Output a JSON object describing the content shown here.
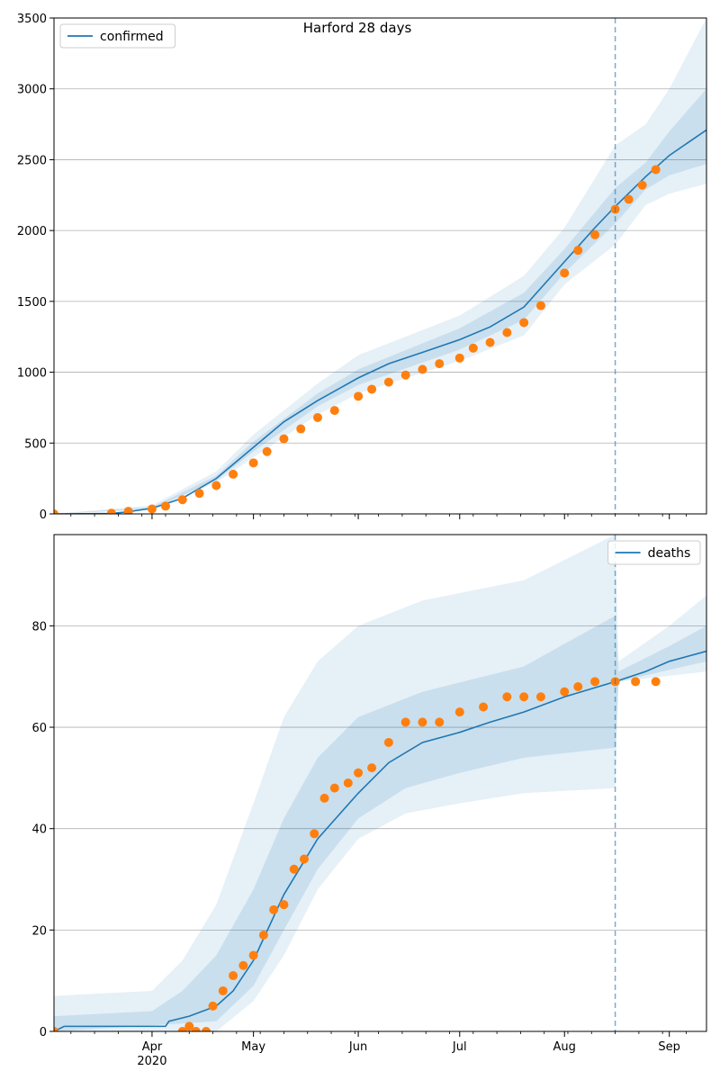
{
  "figure_title": "Harford 28 days",
  "chart_data": [
    {
      "type": "line",
      "name": "confirmed-panel",
      "legend": {
        "label": "confirmed",
        "placement": "top-left"
      },
      "x_axis": {
        "range": [
          "2020-03-03",
          "2020-09-12"
        ],
        "ticks": [
          {
            "date": "2020-04-01",
            "label": "Apr",
            "sublabel": "2020"
          },
          {
            "date": "2020-05-01",
            "label": "May"
          },
          {
            "date": "2020-06-01",
            "label": "Jun"
          },
          {
            "date": "2020-07-01",
            "label": "Jul"
          },
          {
            "date": "2020-08-01",
            "label": "Aug"
          },
          {
            "date": "2020-09-01",
            "label": "Sep"
          }
        ]
      },
      "y_axis": {
        "range": [
          0,
          3500
        ],
        "ticks": [
          0,
          500,
          1000,
          1500,
          2000,
          2500,
          3000,
          3500
        ],
        "grid": true
      },
      "forecast_start": "2020-08-16",
      "model_line": [
        [
          "2020-03-03",
          0
        ],
        [
          "2020-03-20",
          3
        ],
        [
          "2020-03-25",
          15
        ],
        [
          "2020-04-01",
          40
        ],
        [
          "2020-04-10",
          110
        ],
        [
          "2020-04-20",
          250
        ],
        [
          "2020-05-01",
          470
        ],
        [
          "2020-05-10",
          650
        ],
        [
          "2020-05-20",
          800
        ],
        [
          "2020-06-01",
          960
        ],
        [
          "2020-06-10",
          1060
        ],
        [
          "2020-06-20",
          1140
        ],
        [
          "2020-07-01",
          1230
        ],
        [
          "2020-07-10",
          1320
        ],
        [
          "2020-07-20",
          1460
        ],
        [
          "2020-08-01",
          1780
        ],
        [
          "2020-08-10",
          2020
        ],
        [
          "2020-08-16",
          2170
        ],
        [
          "2020-08-25",
          2380
        ],
        [
          "2020-09-01",
          2530
        ],
        [
          "2020-09-12",
          2710
        ]
      ],
      "band_outer": {
        "lower": [
          [
            "2020-03-03",
            0
          ],
          [
            "2020-04-01",
            30
          ],
          [
            "2020-04-20",
            220
          ],
          [
            "2020-05-01",
            400
          ],
          [
            "2020-05-20",
            700
          ],
          [
            "2020-06-01",
            850
          ],
          [
            "2020-07-01",
            1080
          ],
          [
            "2020-07-20",
            1260
          ],
          [
            "2020-08-01",
            1620
          ],
          [
            "2020-08-16",
            1900
          ],
          [
            "2020-08-25",
            2180
          ],
          [
            "2020-09-01",
            2260
          ],
          [
            "2020-09-12",
            2330
          ]
        ],
        "upper": [
          [
            "2020-03-03",
            0
          ],
          [
            "2020-04-01",
            60
          ],
          [
            "2020-04-20",
            300
          ],
          [
            "2020-05-01",
            560
          ],
          [
            "2020-05-20",
            920
          ],
          [
            "2020-06-01",
            1120
          ],
          [
            "2020-07-01",
            1400
          ],
          [
            "2020-07-20",
            1680
          ],
          [
            "2020-08-01",
            2020
          ],
          [
            "2020-08-16",
            2600
          ],
          [
            "2020-08-25",
            2750
          ],
          [
            "2020-09-01",
            3000
          ],
          [
            "2020-09-12",
            3500
          ]
        ]
      },
      "band_inner": {
        "lower": [
          [
            "2020-03-03",
            0
          ],
          [
            "2020-04-01",
            36
          ],
          [
            "2020-04-20",
            235
          ],
          [
            "2020-05-01",
            440
          ],
          [
            "2020-05-20",
            760
          ],
          [
            "2020-06-01",
            910
          ],
          [
            "2020-07-01",
            1160
          ],
          [
            "2020-07-20",
            1370
          ],
          [
            "2020-08-01",
            1700
          ],
          [
            "2020-08-16",
            2050
          ],
          [
            "2020-08-25",
            2290
          ],
          [
            "2020-09-01",
            2390
          ],
          [
            "2020-09-12",
            2470
          ]
        ],
        "upper": [
          [
            "2020-03-03",
            0
          ],
          [
            "2020-04-01",
            48
          ],
          [
            "2020-04-20",
            270
          ],
          [
            "2020-05-01",
            510
          ],
          [
            "2020-05-20",
            850
          ],
          [
            "2020-06-01",
            1020
          ],
          [
            "2020-07-01",
            1310
          ],
          [
            "2020-07-20",
            1560
          ],
          [
            "2020-08-01",
            1870
          ],
          [
            "2020-08-16",
            2300
          ],
          [
            "2020-08-25",
            2480
          ],
          [
            "2020-09-01",
            2700
          ],
          [
            "2020-09-12",
            3000
          ]
        ]
      },
      "observed": [
        [
          "2020-03-03",
          0
        ],
        [
          "2020-03-20",
          5
        ],
        [
          "2020-03-25",
          18
        ],
        [
          "2020-04-01",
          35
        ],
        [
          "2020-04-05",
          55
        ],
        [
          "2020-04-10",
          100
        ],
        [
          "2020-04-15",
          145
        ],
        [
          "2020-04-20",
          200
        ],
        [
          "2020-04-25",
          280
        ],
        [
          "2020-05-01",
          360
        ],
        [
          "2020-05-05",
          440
        ],
        [
          "2020-05-10",
          530
        ],
        [
          "2020-05-15",
          600
        ],
        [
          "2020-05-20",
          680
        ],
        [
          "2020-05-25",
          730
        ],
        [
          "2020-06-01",
          830
        ],
        [
          "2020-06-05",
          880
        ],
        [
          "2020-06-10",
          930
        ],
        [
          "2020-06-15",
          980
        ],
        [
          "2020-06-20",
          1020
        ],
        [
          "2020-06-25",
          1060
        ],
        [
          "2020-07-01",
          1100
        ],
        [
          "2020-07-05",
          1170
        ],
        [
          "2020-07-10",
          1210
        ],
        [
          "2020-07-15",
          1280
        ],
        [
          "2020-07-20",
          1350
        ],
        [
          "2020-07-25",
          1470
        ],
        [
          "2020-08-01",
          1700
        ],
        [
          "2020-08-05",
          1860
        ],
        [
          "2020-08-10",
          1970
        ],
        [
          "2020-08-16",
          2150
        ],
        [
          "2020-08-20",
          2220
        ],
        [
          "2020-08-24",
          2320
        ],
        [
          "2020-08-28",
          2430
        ]
      ]
    },
    {
      "type": "line",
      "name": "deaths-panel",
      "legend": {
        "label": "deaths",
        "placement": "top-right"
      },
      "x_axis": {
        "range": [
          "2020-03-03",
          "2020-09-12"
        ],
        "ticks": [
          {
            "date": "2020-04-01",
            "label": "Apr",
            "sublabel": "2020"
          },
          {
            "date": "2020-05-01",
            "label": "May"
          },
          {
            "date": "2020-06-01",
            "label": "Jun"
          },
          {
            "date": "2020-07-01",
            "label": "Jul"
          },
          {
            "date": "2020-08-01",
            "label": "Aug"
          },
          {
            "date": "2020-09-01",
            "label": "Sep"
          }
        ]
      },
      "y_axis": {
        "range": [
          0,
          98
        ],
        "ticks": [
          0,
          20,
          40,
          60,
          80
        ],
        "grid": true
      },
      "forecast_start": "2020-08-16",
      "model_line": [
        [
          "2020-03-03",
          0
        ],
        [
          "2020-03-06",
          1
        ],
        [
          "2020-04-05",
          1
        ],
        [
          "2020-04-06",
          2
        ],
        [
          "2020-04-12",
          3
        ],
        [
          "2020-04-20",
          5
        ],
        [
          "2020-04-25",
          8
        ],
        [
          "2020-05-01",
          14
        ],
        [
          "2020-05-10",
          27
        ],
        [
          "2020-05-20",
          38
        ],
        [
          "2020-06-01",
          47
        ],
        [
          "2020-06-10",
          53
        ],
        [
          "2020-06-20",
          57
        ],
        [
          "2020-07-01",
          59
        ],
        [
          "2020-07-10",
          61
        ],
        [
          "2020-07-20",
          63
        ],
        [
          "2020-08-01",
          66
        ],
        [
          "2020-08-16",
          69
        ],
        [
          "2020-08-25",
          71
        ],
        [
          "2020-09-01",
          73
        ],
        [
          "2020-09-12",
          75
        ]
      ],
      "band_outer": {
        "lower": [
          [
            "2020-03-03",
            0
          ],
          [
            "2020-04-20",
            0
          ],
          [
            "2020-05-01",
            6
          ],
          [
            "2020-05-10",
            15
          ],
          [
            "2020-05-20",
            28
          ],
          [
            "2020-06-01",
            38
          ],
          [
            "2020-06-15",
            43
          ],
          [
            "2020-07-01",
            45
          ],
          [
            "2020-07-20",
            47
          ],
          [
            "2020-08-16",
            48
          ],
          [
            "2020-08-17",
            69
          ],
          [
            "2020-09-12",
            71
          ]
        ],
        "upper": [
          [
            "2020-03-03",
            7
          ],
          [
            "2020-04-01",
            8
          ],
          [
            "2020-04-10",
            14
          ],
          [
            "2020-04-20",
            25
          ],
          [
            "2020-05-01",
            45
          ],
          [
            "2020-05-10",
            62
          ],
          [
            "2020-05-20",
            73
          ],
          [
            "2020-06-01",
            80
          ],
          [
            "2020-06-20",
            85
          ],
          [
            "2020-07-20",
            89
          ],
          [
            "2020-08-16",
            98
          ],
          [
            "2020-08-17",
            73
          ],
          [
            "2020-09-01",
            80
          ],
          [
            "2020-09-12",
            86
          ]
        ]
      },
      "band_inner": {
        "lower": [
          [
            "2020-03-03",
            0
          ],
          [
            "2020-04-20",
            2
          ],
          [
            "2020-05-01",
            9
          ],
          [
            "2020-05-10",
            20
          ],
          [
            "2020-05-20",
            32
          ],
          [
            "2020-06-01",
            42
          ],
          [
            "2020-06-15",
            48
          ],
          [
            "2020-07-01",
            51
          ],
          [
            "2020-07-20",
            54
          ],
          [
            "2020-08-16",
            56
          ],
          [
            "2020-08-17",
            69
          ],
          [
            "2020-09-12",
            73
          ]
        ],
        "upper": [
          [
            "2020-03-03",
            3
          ],
          [
            "2020-04-01",
            4
          ],
          [
            "2020-04-10",
            8
          ],
          [
            "2020-04-20",
            15
          ],
          [
            "2020-05-01",
            28
          ],
          [
            "2020-05-10",
            42
          ],
          [
            "2020-05-20",
            54
          ],
          [
            "2020-06-01",
            62
          ],
          [
            "2020-06-20",
            67
          ],
          [
            "2020-07-20",
            72
          ],
          [
            "2020-08-16",
            82
          ],
          [
            "2020-08-17",
            71
          ],
          [
            "2020-09-01",
            76
          ],
          [
            "2020-09-12",
            80
          ]
        ]
      },
      "observed": [
        [
          "2020-03-03",
          0
        ],
        [
          "2020-04-10",
          0
        ],
        [
          "2020-04-12",
          1
        ],
        [
          "2020-04-14",
          0
        ],
        [
          "2020-04-17",
          0
        ],
        [
          "2020-04-19",
          5
        ],
        [
          "2020-04-22",
          8
        ],
        [
          "2020-04-25",
          11
        ],
        [
          "2020-04-28",
          13
        ],
        [
          "2020-05-01",
          15
        ],
        [
          "2020-05-04",
          19
        ],
        [
          "2020-05-07",
          24
        ],
        [
          "2020-05-10",
          25
        ],
        [
          "2020-05-13",
          32
        ],
        [
          "2020-05-16",
          34
        ],
        [
          "2020-05-19",
          39
        ],
        [
          "2020-05-22",
          46
        ],
        [
          "2020-05-25",
          48
        ],
        [
          "2020-05-29",
          49
        ],
        [
          "2020-06-01",
          51
        ],
        [
          "2020-06-05",
          52
        ],
        [
          "2020-06-10",
          57
        ],
        [
          "2020-06-15",
          61
        ],
        [
          "2020-06-20",
          61
        ],
        [
          "2020-06-25",
          61
        ],
        [
          "2020-07-01",
          63
        ],
        [
          "2020-07-08",
          64
        ],
        [
          "2020-07-15",
          66
        ],
        [
          "2020-07-20",
          66
        ],
        [
          "2020-07-25",
          66
        ],
        [
          "2020-08-01",
          67
        ],
        [
          "2020-08-05",
          68
        ],
        [
          "2020-08-10",
          69
        ],
        [
          "2020-08-16",
          69
        ],
        [
          "2020-08-22",
          69
        ],
        [
          "2020-08-28",
          69
        ]
      ]
    }
  ],
  "colors": {
    "line": "#1f77b4",
    "observed": "#ff7f0e",
    "band": "#1f77b4",
    "grid": "#b0b0b0"
  }
}
